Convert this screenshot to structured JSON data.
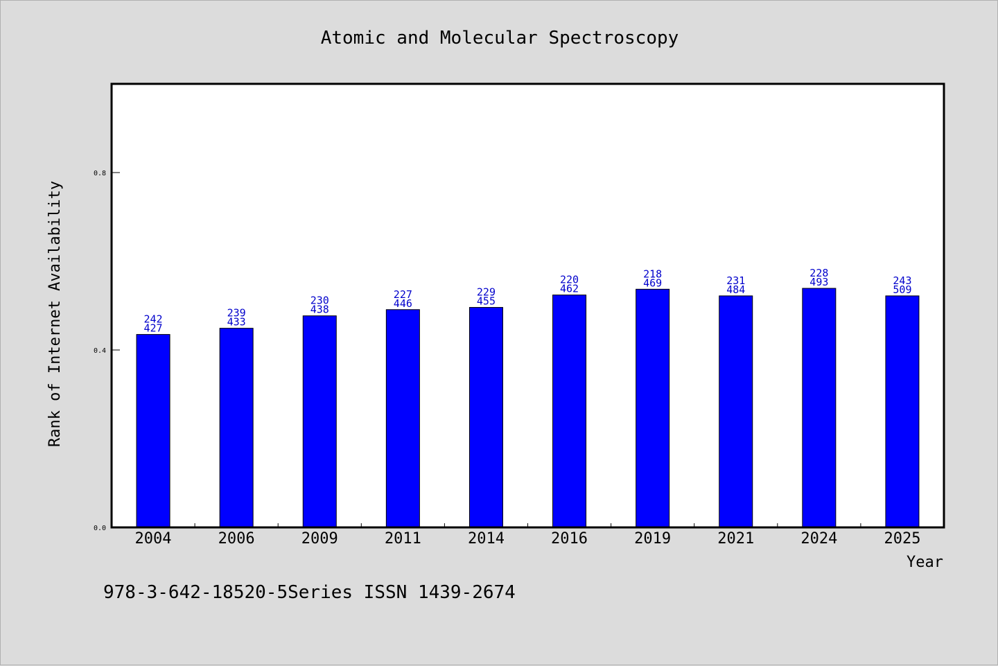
{
  "chart_data": {
    "type": "bar",
    "title": "Atomic and Molecular Spectroscopy",
    "xlabel": "Year",
    "ylabel": "Rank of Internet Availability",
    "categories": [
      "2004",
      "2006",
      "2009",
      "2011",
      "2014",
      "2016",
      "2019",
      "2021",
      "2024",
      "2025"
    ],
    "values": [
      0.435,
      0.449,
      0.477,
      0.491,
      0.496,
      0.524,
      0.537,
      0.522,
      0.539,
      0.522
    ],
    "data_labels_top": [
      "242",
      "239",
      "230",
      "227",
      "229",
      "220",
      "218",
      "231",
      "228",
      "243"
    ],
    "data_labels_bottom": [
      "427",
      "433",
      "438",
      "446",
      "455",
      "462",
      "469",
      "484",
      "493",
      "509"
    ],
    "yticks": [
      0.0,
      0.4,
      0.8
    ],
    "ytick_labels": [
      "0.0",
      "0.4",
      "0.8"
    ],
    "ylim": [
      0.0,
      1.0
    ],
    "grid": false,
    "bar_color": "#0000ff",
    "label_color": "#0000cc",
    "background": "#dcdcdc",
    "plot_background": "#ffffff"
  },
  "footer": {
    "text": "978-3-642-18520-5Series ISSN 1439-2674"
  }
}
